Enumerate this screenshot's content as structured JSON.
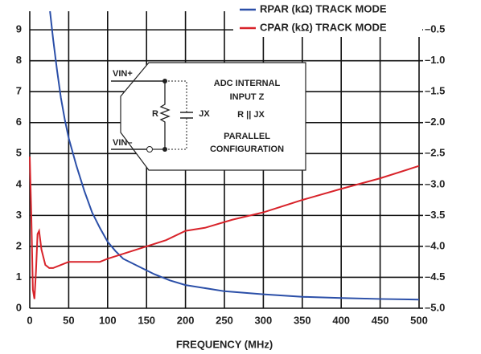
{
  "chart_data": {
    "type": "line",
    "xlabel": "FREQUENCY (MHz)",
    "xlim": [
      0,
      500
    ],
    "xticks": [
      0,
      50,
      100,
      150,
      200,
      250,
      300,
      350,
      400,
      450,
      500
    ],
    "ylim": [
      0,
      9.6
    ],
    "yticks": [
      0,
      1,
      2,
      3,
      4,
      5,
      6,
      7,
      8,
      9
    ],
    "y2lim": [
      -5,
      -0.2
    ],
    "y2ticks": [
      {
        "value": -5,
        "label": "–5.0"
      },
      {
        "value": -4.5,
        "label": "–4.5"
      },
      {
        "value": -4,
        "label": "–4.0"
      },
      {
        "value": -3.5,
        "label": "–3.5"
      },
      {
        "value": -3,
        "label": "–3.0"
      },
      {
        "value": -2.5,
        "label": "–2.5"
      },
      {
        "value": -2,
        "label": "–2.0"
      },
      {
        "value": -1.5,
        "label": "–1.5"
      },
      {
        "value": -1,
        "label": "–1.0"
      },
      {
        "value": -0.5,
        "label": "–0.5"
      }
    ],
    "grid": true,
    "legend": "top-right",
    "series": [
      {
        "name": "RPAR (kΩ) TRACK MODE",
        "color": "#2b4fa8",
        "x": [
          26,
          30,
          35,
          40,
          45,
          50,
          60,
          70,
          80,
          90,
          100,
          110,
          120,
          140,
          160,
          180,
          200,
          250,
          300,
          350,
          400,
          450,
          500
        ],
        "values": [
          9.6,
          8.7,
          7.7,
          6.8,
          6.1,
          5.5,
          4.6,
          3.8,
          3.1,
          2.6,
          2.15,
          1.85,
          1.6,
          1.35,
          1.1,
          0.9,
          0.75,
          0.55,
          0.45,
          0.37,
          0.33,
          0.3,
          0.28
        ]
      },
      {
        "name": "CPAR (kΩ) TRACK MODE",
        "color": "#d8232a",
        "axis": "y2",
        "x": [
          0,
          2,
          4,
          6,
          8,
          10,
          12,
          15,
          20,
          25,
          30,
          40,
          50,
          70,
          90,
          100,
          120,
          150,
          175,
          200,
          225,
          260,
          300,
          350,
          400,
          450,
          500
        ],
        "values": [
          -2.55,
          -3.5,
          -4.7,
          -4.85,
          -4.4,
          -3.8,
          -3.75,
          -4.05,
          -4.3,
          -4.35,
          -4.35,
          -4.3,
          -4.25,
          -4.25,
          -4.25,
          -4.2,
          -4.12,
          -4.0,
          -3.9,
          -3.75,
          -3.7,
          -3.57,
          -3.45,
          -3.25,
          -3.07,
          -2.9,
          -2.7
        ]
      }
    ],
    "annotations": [
      "VIN+",
      "VIN–",
      "R",
      "JX",
      "ADC INTERNAL",
      "INPUT Z",
      "R || JX",
      "PARALLEL",
      "CONFIGURATION"
    ]
  }
}
